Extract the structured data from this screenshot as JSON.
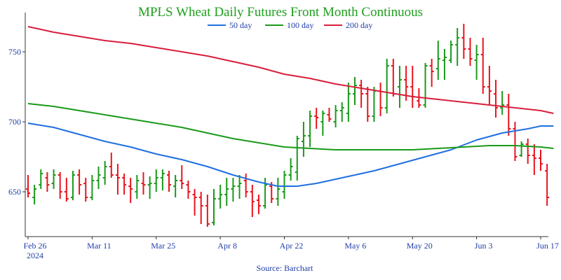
{
  "chart_data": {
    "type": "ohlc",
    "title": "MPLS Wheat Daily Futures Front Month Continuous",
    "source": "Source: Barchart",
    "colors": {
      "title": "#1ea01e",
      "text": "#1f3ea8",
      "up": "#1a9a1a",
      "down": "#e8141e",
      "ma50": "#1f6fe0",
      "ma100": "#1a9a1a",
      "ma200": "#d81e3c",
      "axis": "#333333"
    },
    "ylim": [
      618,
      778
    ],
    "yticks": [
      650,
      700,
      750
    ],
    "x_ticks": [
      {
        "i": 0,
        "label": "Feb 26",
        "sub": "2024"
      },
      {
        "i": 10,
        "label": "Mar 11",
        "sub": ""
      },
      {
        "i": 20,
        "label": "Mar 25",
        "sub": ""
      },
      {
        "i": 30,
        "label": "Apr 8",
        "sub": ""
      },
      {
        "i": 40,
        "label": "Apr 22",
        "sub": ""
      },
      {
        "i": 50,
        "label": "May 6",
        "sub": ""
      },
      {
        "i": 60,
        "label": "May 20",
        "sub": ""
      },
      {
        "i": 70,
        "label": "Jun 3",
        "sub": ""
      },
      {
        "i": 80,
        "label": "Jun 17",
        "sub": ""
      }
    ],
    "ohlc": [
      [
        652,
        662,
        646,
        649
      ],
      [
        646,
        655,
        641,
        652
      ],
      [
        655,
        666,
        652,
        663
      ],
      [
        660,
        664,
        650,
        655
      ],
      [
        656,
        666,
        652,
        662
      ],
      [
        662,
        664,
        645,
        650
      ],
      [
        650,
        660,
        643,
        645
      ],
      [
        646,
        665,
        644,
        662
      ],
      [
        662,
        666,
        648,
        655
      ],
      [
        656,
        660,
        643,
        646
      ],
      [
        646,
        662,
        644,
        658
      ],
      [
        658,
        668,
        652,
        662
      ],
      [
        660,
        672,
        655,
        668
      ],
      [
        668,
        678,
        660,
        662
      ],
      [
        662,
        670,
        648,
        660
      ],
      [
        660,
        663,
        648,
        655
      ],
      [
        654,
        660,
        642,
        652
      ],
      [
        650,
        662,
        645,
        658
      ],
      [
        656,
        664,
        648,
        655
      ],
      [
        655,
        661,
        645,
        656
      ],
      [
        656,
        666,
        650,
        660
      ],
      [
        660,
        666,
        651,
        663
      ],
      [
        662,
        665,
        650,
        655
      ],
      [
        654,
        662,
        646,
        658
      ],
      [
        658,
        669,
        652,
        656
      ],
      [
        655,
        658,
        645,
        650
      ],
      [
        648,
        652,
        633,
        646
      ],
      [
        646,
        650,
        627,
        640
      ],
      [
        640,
        648,
        625,
        627
      ],
      [
        628,
        652,
        626,
        645
      ],
      [
        645,
        655,
        638,
        648
      ],
      [
        648,
        660,
        640,
        652
      ],
      [
        652,
        660,
        643,
        654
      ],
      [
        654,
        662,
        645,
        656
      ],
      [
        658,
        663,
        646,
        650
      ],
      [
        650,
        655,
        632,
        643
      ],
      [
        644,
        648,
        634,
        640
      ],
      [
        640,
        660,
        638,
        655
      ],
      [
        654,
        657,
        642,
        645
      ],
      [
        645,
        660,
        640,
        652
      ],
      [
        650,
        665,
        645,
        662
      ],
      [
        662,
        674,
        658,
        668
      ],
      [
        664,
        690,
        658,
        688
      ],
      [
        686,
        700,
        675,
        690
      ],
      [
        690,
        708,
        682,
        704
      ],
      [
        704,
        710,
        695,
        703
      ],
      [
        700,
        708,
        690,
        706
      ],
      [
        705,
        710,
        700,
        702
      ],
      [
        700,
        712,
        696,
        708
      ],
      [
        708,
        714,
        700,
        710
      ],
      [
        706,
        728,
        700,
        720
      ],
      [
        720,
        732,
        712,
        726
      ],
      [
        726,
        730,
        710,
        720
      ],
      [
        720,
        725,
        700,
        704
      ],
      [
        704,
        725,
        700,
        722
      ],
      [
        722,
        728,
        704,
        710
      ],
      [
        710,
        745,
        706,
        740
      ],
      [
        740,
        745,
        718,
        720
      ],
      [
        725,
        740,
        710,
        730
      ],
      [
        730,
        740,
        715,
        725
      ],
      [
        725,
        740,
        710,
        718
      ],
      [
        715,
        724,
        710,
        712
      ],
      [
        712,
        742,
        710,
        740
      ],
      [
        740,
        745,
        725,
        736
      ],
      [
        738,
        758,
        730,
        745
      ],
      [
        744,
        752,
        730,
        746
      ],
      [
        744,
        758,
        742,
        755
      ],
      [
        755,
        767,
        740,
        760
      ],
      [
        760,
        770,
        745,
        752
      ],
      [
        752,
        760,
        740,
        745
      ],
      [
        744,
        755,
        730,
        748
      ],
      [
        748,
        760,
        720,
        725
      ],
      [
        725,
        740,
        712,
        722
      ],
      [
        720,
        730,
        703,
        710
      ],
      [
        710,
        722,
        705,
        712
      ],
      [
        712,
        720,
        690,
        695
      ],
      [
        695,
        700,
        672,
        675
      ],
      [
        676,
        686,
        675,
        684
      ],
      [
        684,
        688,
        670,
        676
      ],
      [
        676,
        684,
        662,
        674
      ],
      [
        674,
        680,
        665,
        670
      ],
      [
        665,
        670,
        640,
        646
      ]
    ],
    "series": [
      {
        "name": "50 day",
        "key": "ma50",
        "values": [
          [
            0,
            699
          ],
          [
            4,
            696
          ],
          [
            8,
            691
          ],
          [
            12,
            686
          ],
          [
            16,
            682
          ],
          [
            20,
            677
          ],
          [
            24,
            673
          ],
          [
            28,
            668
          ],
          [
            32,
            662
          ],
          [
            36,
            657
          ],
          [
            39,
            654
          ],
          [
            42,
            654
          ],
          [
            45,
            656
          ],
          [
            48,
            659
          ],
          [
            50,
            661
          ],
          [
            52,
            663
          ],
          [
            54,
            665
          ],
          [
            58,
            670
          ],
          [
            62,
            675
          ],
          [
            66,
            680
          ],
          [
            70,
            687
          ],
          [
            74,
            692
          ],
          [
            78,
            695
          ],
          [
            80,
            697
          ],
          [
            82,
            697
          ]
        ]
      },
      {
        "name": "100 day",
        "key": "ma100",
        "values": [
          [
            0,
            713
          ],
          [
            4,
            711
          ],
          [
            8,
            708
          ],
          [
            12,
            705
          ],
          [
            16,
            702
          ],
          [
            20,
            699
          ],
          [
            24,
            696
          ],
          [
            28,
            692
          ],
          [
            32,
            688
          ],
          [
            36,
            685
          ],
          [
            40,
            682
          ],
          [
            44,
            681
          ],
          [
            48,
            680
          ],
          [
            52,
            680
          ],
          [
            56,
            680
          ],
          [
            60,
            680
          ],
          [
            64,
            681
          ],
          [
            68,
            682
          ],
          [
            72,
            683
          ],
          [
            76,
            683
          ],
          [
            80,
            682
          ],
          [
            82,
            681
          ]
        ]
      },
      {
        "name": "200 day",
        "key": "ma200",
        "values": [
          [
            0,
            768
          ],
          [
            4,
            764
          ],
          [
            8,
            761
          ],
          [
            12,
            758
          ],
          [
            16,
            756
          ],
          [
            20,
            753
          ],
          [
            24,
            750
          ],
          [
            28,
            747
          ],
          [
            32,
            743
          ],
          [
            36,
            739
          ],
          [
            40,
            734
          ],
          [
            44,
            731
          ],
          [
            48,
            727
          ],
          [
            52,
            724
          ],
          [
            56,
            721
          ],
          [
            60,
            718
          ],
          [
            64,
            716
          ],
          [
            68,
            714
          ],
          [
            72,
            712
          ],
          [
            76,
            710
          ],
          [
            80,
            708
          ],
          [
            82,
            706
          ]
        ]
      }
    ]
  }
}
